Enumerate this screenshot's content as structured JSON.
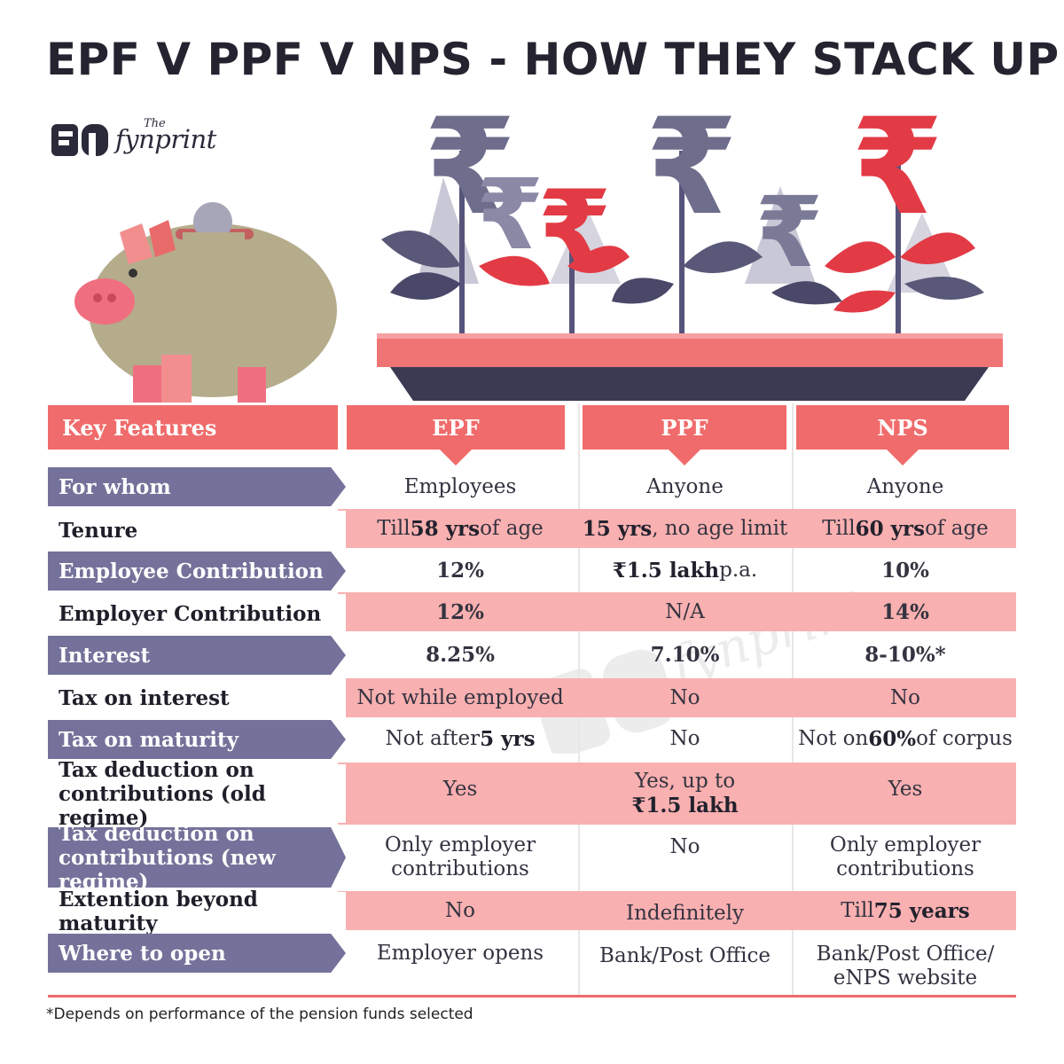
{
  "title": "EPF V PPF V NPS - HOW THEY STACK UP",
  "logo": {
    "the": "The",
    "word": "fynprint"
  },
  "colors": {
    "accent": "#f06b6b",
    "label_bg": "#74729a",
    "band": "#f9b0b0",
    "title": "#24232f"
  },
  "table": {
    "header": {
      "key": "Key Features",
      "epf": "EPF",
      "ppf": "PPF",
      "nps": "NPS"
    },
    "rows": [
      {
        "label": "For whom",
        "epf": "Employees",
        "ppf": "Anyone",
        "nps": "Anyone"
      },
      {
        "label": "Tenure",
        "epf_pre": "Till ",
        "epf_bold": "58 yrs",
        "epf_post": " of age",
        "ppf_bold": "15 yrs",
        "ppf_post": ", no age limit",
        "nps_pre": "Till ",
        "nps_bold": "60 yrs",
        "nps_post": " of age"
      },
      {
        "label": "Employee Contribution",
        "epf": "12%",
        "ppf_bold": "₹1.5 lakh",
        "ppf_post": " p.a.",
        "nps": "10%"
      },
      {
        "label": "Employer Contribution",
        "epf": "12%",
        "ppf": "N/A",
        "nps": "14%"
      },
      {
        "label": "Interest",
        "epf": "8.25%",
        "ppf": "7.10%",
        "nps": "8-10%*"
      },
      {
        "label": "Tax on interest",
        "epf": "Not while employed",
        "ppf": "No",
        "nps": "No"
      },
      {
        "label": "Tax on maturity",
        "epf_pre": "Not after ",
        "epf_bold": "5 yrs",
        "ppf": "No",
        "nps_pre": "Not on ",
        "nps_bold": "60%",
        "nps_post": " of corpus"
      },
      {
        "label_1": "Tax deduction on",
        "label_2": "contributions (old regime)",
        "epf": "Yes",
        "ppf_1": "Yes, up to",
        "ppf_2": "₹1.5 lakh",
        "nps": "Yes"
      },
      {
        "label_1": "Tax deduction on",
        "label_2": "contributions (new regime)",
        "epf_1": "Only employer",
        "epf_2": "contributions",
        "ppf": "No",
        "nps_1": "Only employer",
        "nps_2": "contributions"
      },
      {
        "label": "Extention beyond maturity",
        "epf": "No",
        "ppf": "Indefinitely",
        "nps_pre": "Till ",
        "nps_bold": "75 years"
      },
      {
        "label": "Where to open",
        "epf": "Employer opens",
        "ppf": "Bank/Post Office",
        "nps_1": "Bank/Post Office/",
        "nps_2": "eNPS website"
      }
    ]
  },
  "footnote": "*Depends on performance of the pension funds selected"
}
